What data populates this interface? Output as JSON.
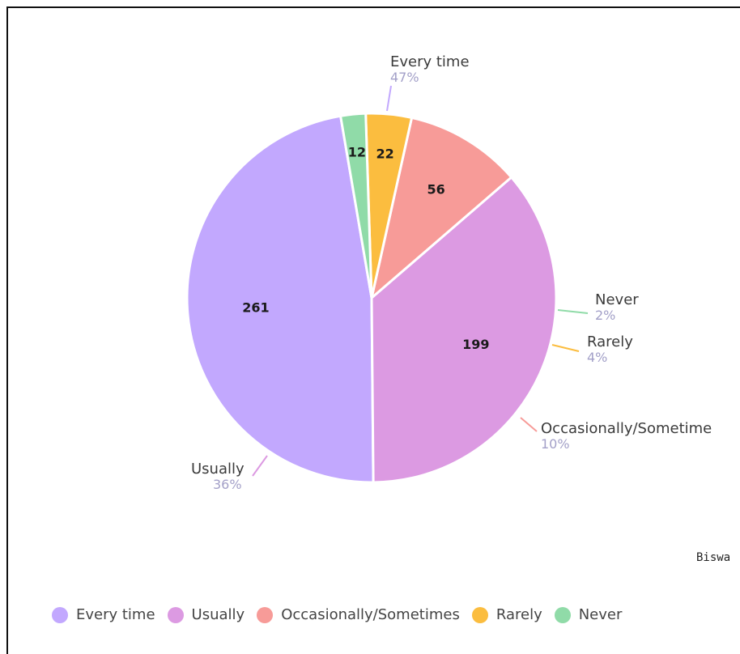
{
  "chart_data": {
    "type": "pie",
    "slices": [
      {
        "label": "Every time",
        "value": 261,
        "percent_label": "47%",
        "color": "#c2a8fe"
      },
      {
        "label": "Usually",
        "value": 199,
        "percent_label": "36%",
        "color": "#dc9ae2"
      },
      {
        "label": "Occasionally/Sometime",
        "value": 56,
        "percent_label": "10%",
        "color": "#f79b98"
      },
      {
        "label": "Rarely",
        "value": 22,
        "percent_label": "4%",
        "color": "#fbbd3f"
      },
      {
        "label": "Never",
        "value": 12,
        "percent_label": "2%",
        "color": "#90dba8"
      }
    ],
    "legend": {
      "position": "bottom",
      "items": [
        {
          "label": "Every time",
          "color": "#c2a8fe"
        },
        {
          "label": "Usually",
          "color": "#dc9ae2"
        },
        {
          "label": "Occasionally/Sometimes",
          "color": "#f79b98"
        },
        {
          "label": "Rarely",
          "color": "#fbbd3f"
        },
        {
          "label": "Never",
          "color": "#90dba8"
        }
      ]
    }
  },
  "footer": {
    "text": "Biswa"
  }
}
